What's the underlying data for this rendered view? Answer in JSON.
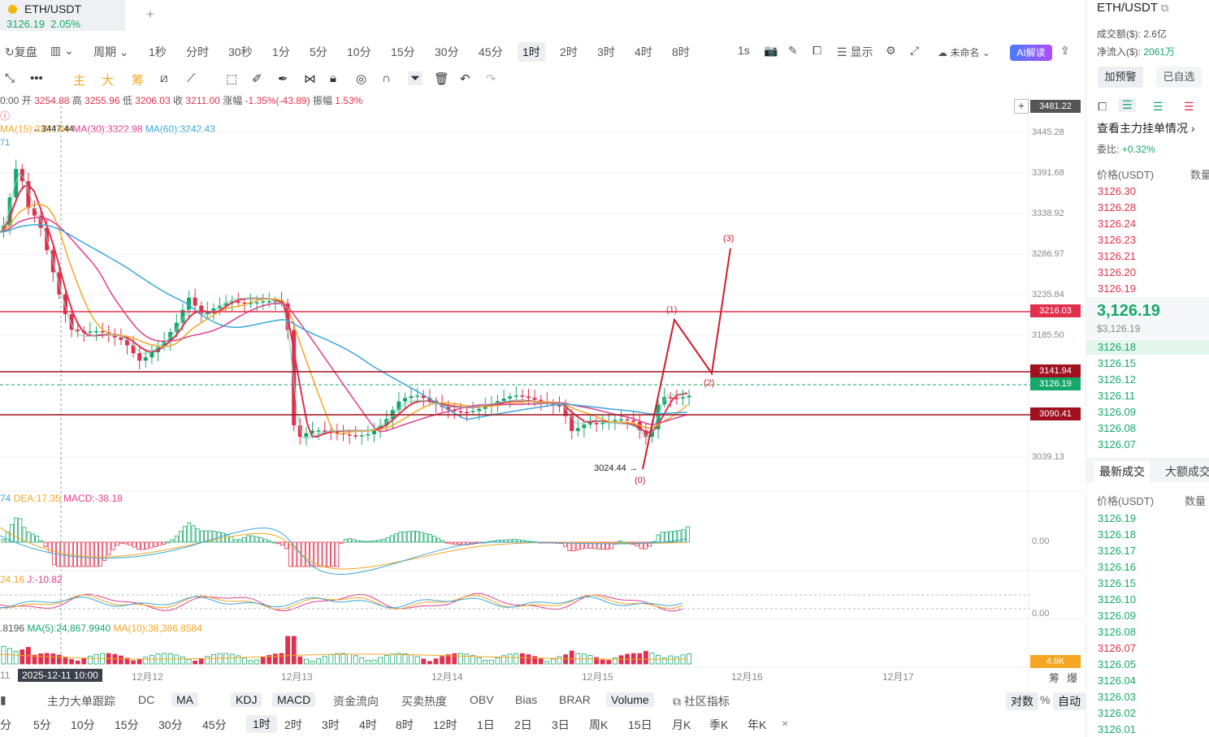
{
  "tab": {
    "symbol": "ETH/USDT",
    "price": "3126.19",
    "change": "2.05%"
  },
  "toolbar": {
    "replay": "复盘",
    "period": "周期",
    "intervals": [
      "1秒",
      "分时",
      "30秒",
      "1分",
      "5分",
      "10分",
      "15分",
      "30分",
      "45分",
      "1时",
      "2时",
      "3时",
      "4时",
      "8时"
    ],
    "right_interval": "1s",
    "display": "显示",
    "unnamed": "未命名",
    "ai": "AI解读"
  },
  "indicator_tabs": {
    "main": "主",
    "big": "大",
    "chip": "筹"
  },
  "ohlc": {
    "time": "0:00",
    "open_l": "开",
    "open": "3254.88",
    "high_l": "高",
    "high": "3255.96",
    "low_l": "低",
    "low": "3206.03",
    "close_l": "收",
    "close": "3211.00",
    "chg_l": "涨幅",
    "chg": "-1.35%(-43.89)",
    "amp_l": "振幅",
    "amp": "1.53%"
  },
  "ma_legend": {
    "ma15": "MA(15):3322.44",
    "ma30": "MA(30):3322.98",
    "ma60": "MA(60):3242.43",
    "hi_marker": "3447.44",
    "side": "71"
  },
  "price_axis": [
    "3481.22",
    "3445.28",
    "3391.68",
    "3338.92",
    "3286.97",
    "3235.84",
    "3216.03",
    "3185.50",
    "3141.94",
    "3126.19",
    "3090.41",
    "3039.13"
  ],
  "annotations": {
    "low": "3024.44",
    "w0": "(0)",
    "w1": "(1)",
    "w2": "(2)",
    "w3": "(3)"
  },
  "macd": {
    "legend_a": "74",
    "dea": "DEA:17.35",
    "macd": "MACD:-38.18",
    "zero": "0.00"
  },
  "kdj": {
    "legend_a": "24.16",
    "j": "J:-10.82",
    "zero": "0.00"
  },
  "volume": {
    "legend_a": ".8196",
    "ma5": "MA(5):24,867.9940",
    "ma10": "MA(10):38,386.8584",
    "tag": "4.9K"
  },
  "xaxis": {
    "hover": "2025-12-11 10:00",
    "left": "11",
    "d12": "12月12",
    "d13": "12月13",
    "d14": "12月14",
    "d15": "12月15",
    "d16": "12月16",
    "d17": "12月17",
    "chou": "筹",
    "bao": "爆"
  },
  "bottom_tabs": [
    "主力大单跟踪",
    "DC",
    "MA",
    "KDJ",
    "MACD",
    "资金流向",
    "买卖热度",
    "OBV",
    "Bias",
    "BRAR",
    "Volume",
    "社区指标"
  ],
  "bottom_right": {
    "log": "对数",
    "pct": "%",
    "auto": "自动"
  },
  "interval_row": [
    "分",
    "5分",
    "10分",
    "15分",
    "30分",
    "45分",
    "1时",
    "2时",
    "3时",
    "4时",
    "8时",
    "12时",
    "1日",
    "2日",
    "3日",
    "周K",
    "15日",
    "月K",
    "季K",
    "年K"
  ],
  "right_panel": {
    "symbol": "ETH/USDT",
    "turnover_l": "成交额($):",
    "turnover": "2.6亿",
    "inflow_l": "净流入($):",
    "inflow": "2061万",
    "alert_btn": "加预警",
    "fav_btn": "已自选",
    "depth_link": "查看主力挂单情况",
    "ratio_l": "委比:",
    "ratio": "+0.32%",
    "price_h": "价格(USDT)",
    "qty_h": "数量",
    "asks": [
      "3126.30",
      "3126.28",
      "3126.24",
      "3126.23",
      "3126.21",
      "3126.20",
      "3126.19"
    ],
    "last": "3,126.19",
    "last_sub": "$3,126.19",
    "bids": [
      "3126.18",
      "3126.15",
      "3126.12",
      "3126.11",
      "3126.09",
      "3126.08",
      "3126.07"
    ],
    "trades_tab": "最新成交",
    "big_trades_tab": "大额成交",
    "t_price_h": "价格(USDT)",
    "t_qty_h": "数量",
    "trades": [
      "3126.19",
      "3126.18",
      "3126.17",
      "3126.16",
      "3126.15",
      "3126.10",
      "3126.09",
      "3126.08",
      "3126.07",
      "3126.05",
      "3126.04",
      "3126.03",
      "3126.02",
      "3126.01"
    ],
    "trade_colors": [
      "g",
      "g",
      "g",
      "g",
      "g",
      "g",
      "g",
      "g",
      "r",
      "g",
      "g",
      "g",
      "g",
      "g"
    ]
  },
  "colors": {
    "up": "#16a86a",
    "down": "#e0304e",
    "ma15": "#f5a623",
    "ma30": "#e23c8c",
    "ma60": "#3aa7d9",
    "level": "#d01c2e"
  }
}
